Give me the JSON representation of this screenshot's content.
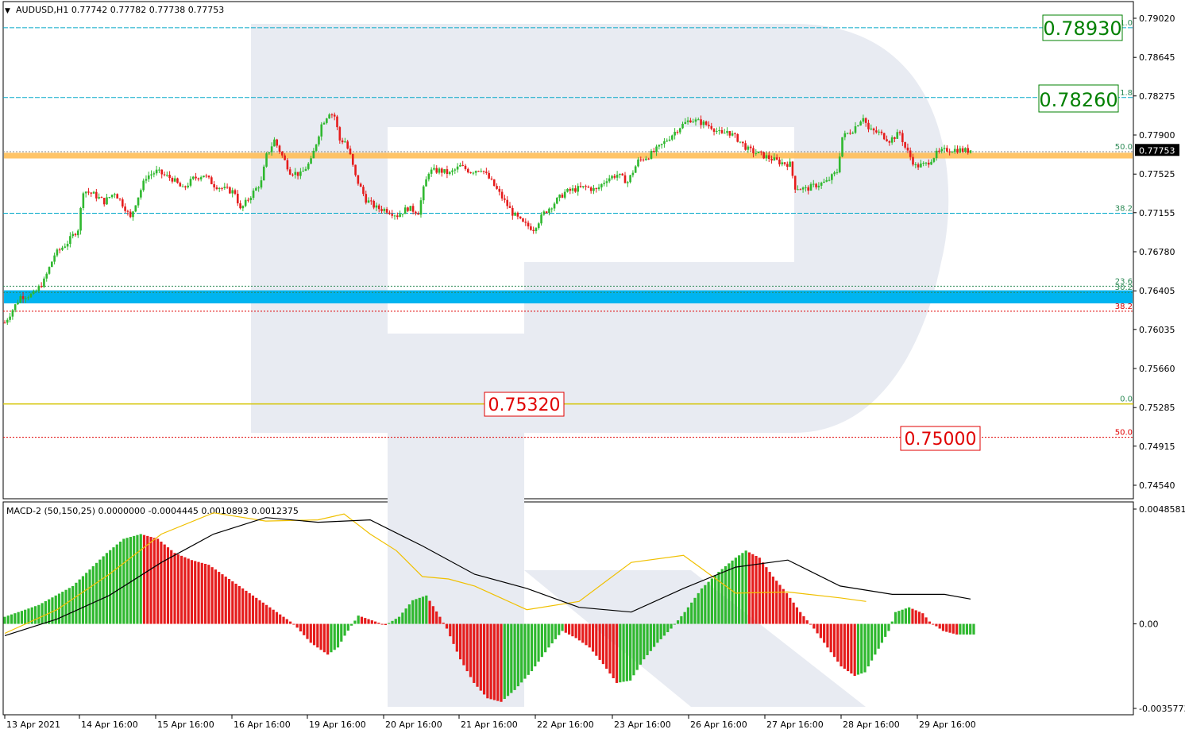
{
  "header": {
    "symbol_line": "AUDUSD,H1  0.77742 0.77782 0.77738 0.77753"
  },
  "colors": {
    "bull": "#2fb82f",
    "bear": "#e51c1c",
    "cyan_line": "#00a8c8",
    "zone_orange": "#ffbe57",
    "zone_blue": "#00b4f0",
    "green_box": "#008000",
    "red_box": "#e00000",
    "watermark": "#e8ebf2",
    "macd_signal": "#f0c000",
    "macd_line": "#000000"
  },
  "chart_data": [
    {
      "type": "candlestick",
      "symbol": "AUDUSD",
      "timeframe": "H1",
      "ohlc_last": {
        "open": 0.77742,
        "high": 0.77782,
        "low": 0.77738,
        "close": 0.77753
      },
      "current_price_label": "0.77753",
      "y_ticks": [
        "0.79020",
        "0.78645",
        "0.78275",
        "0.77900",
        "0.77525",
        "0.77155",
        "0.76780",
        "0.76405",
        "0.76035",
        "0.75660",
        "0.75285",
        "0.74915",
        "0.74540"
      ],
      "y_tick_values": [
        0.7902,
        0.78645,
        0.78275,
        0.779,
        0.77525,
        0.77155,
        0.7678,
        0.76405,
        0.76035,
        0.7566,
        0.75285,
        0.74915,
        0.7454
      ],
      "ylim": [
        0.7436,
        0.7918
      ],
      "x_ticks": [
        "13 Apr 2021",
        "14 Apr 16:00",
        "15 Apr 16:00",
        "16 Apr 16:00",
        "19 Apr 16:00",
        "20 Apr 16:00",
        "21 Apr 16:00",
        "22 Apr 16:00",
        "23 Apr 16:00",
        "26 Apr 16:00",
        "27 Apr 16:00",
        "28 Apr 16:00",
        "29 Apr 16:00"
      ],
      "trend": [
        [
          0,
          0.761
        ],
        [
          6,
          0.7635
        ],
        [
          11,
          0.7637
        ],
        [
          15,
          0.765
        ],
        [
          19,
          0.7675
        ],
        [
          24,
          0.7687
        ],
        [
          28,
          0.77
        ],
        [
          30,
          0.7737
        ],
        [
          34,
          0.7733
        ],
        [
          38,
          0.7726
        ],
        [
          42,
          0.7735
        ],
        [
          46,
          0.772
        ],
        [
          48,
          0.771
        ],
        [
          50,
          0.7725
        ],
        [
          54,
          0.775
        ],
        [
          58,
          0.7755
        ],
        [
          64,
          0.7748
        ],
        [
          68,
          0.7738
        ],
        [
          72,
          0.7748
        ],
        [
          76,
          0.7752
        ],
        [
          80,
          0.7742
        ],
        [
          84,
          0.7738
        ],
        [
          88,
          0.7735
        ],
        [
          90,
          0.7718
        ],
        [
          94,
          0.7732
        ],
        [
          98,
          0.7745
        ],
        [
          100,
          0.777
        ],
        [
          103,
          0.7785
        ],
        [
          106,
          0.777
        ],
        [
          109,
          0.7755
        ],
        [
          113,
          0.7752
        ],
        [
          117,
          0.7765
        ],
        [
          121,
          0.78
        ],
        [
          124,
          0.7812
        ],
        [
          126,
          0.7808
        ],
        [
          128,
          0.7785
        ],
        [
          130,
          0.7784
        ],
        [
          132,
          0.777
        ],
        [
          134,
          0.775
        ],
        [
          138,
          0.7728
        ],
        [
          142,
          0.772
        ],
        [
          146,
          0.7718
        ],
        [
          150,
          0.7713
        ],
        [
          154,
          0.772
        ],
        [
          158,
          0.7716
        ],
        [
          160,
          0.7738
        ],
        [
          162,
          0.7755
        ],
        [
          166,
          0.7756
        ],
        [
          170,
          0.7753
        ],
        [
          174,
          0.776
        ],
        [
          178,
          0.7755
        ],
        [
          182,
          0.7758
        ],
        [
          186,
          0.7745
        ],
        [
          190,
          0.773
        ],
        [
          194,
          0.7715
        ],
        [
          198,
          0.7705
        ],
        [
          202,
          0.77
        ],
        [
          206,
          0.7715
        ],
        [
          210,
          0.7725
        ],
        [
          214,
          0.7735
        ],
        [
          218,
          0.7738
        ],
        [
          222,
          0.774
        ],
        [
          226,
          0.7737
        ],
        [
          230,
          0.7748
        ],
        [
          234,
          0.7752
        ],
        [
          238,
          0.7745
        ],
        [
          242,
          0.7765
        ],
        [
          246,
          0.777
        ],
        [
          250,
          0.7778
        ],
        [
          254,
          0.7788
        ],
        [
          258,
          0.7798
        ],
        [
          262,
          0.7805
        ],
        [
          266,
          0.7802
        ],
        [
          270,
          0.7798
        ],
        [
          274,
          0.779
        ],
        [
          276,
          0.7794
        ],
        [
          280,
          0.7786
        ],
        [
          284,
          0.7776
        ],
        [
          288,
          0.7772
        ],
        [
          292,
          0.7768
        ],
        [
          296,
          0.7764
        ],
        [
          300,
          0.7762
        ],
        [
          302,
          0.774
        ],
        [
          306,
          0.7738
        ],
        [
          310,
          0.7742
        ],
        [
          314,
          0.7745
        ],
        [
          318,
          0.7755
        ],
        [
          320,
          0.7788
        ],
        [
          324,
          0.7795
        ],
        [
          328,
          0.7808
        ],
        [
          330,
          0.7795
        ],
        [
          334,
          0.7792
        ],
        [
          338,
          0.7785
        ],
        [
          342,
          0.7792
        ],
        [
          344,
          0.7778
        ],
        [
          348,
          0.776
        ],
        [
          352,
          0.7762
        ],
        [
          356,
          0.7772
        ],
        [
          360,
          0.7776
        ],
        [
          364,
          0.7776
        ],
        [
          367,
          0.7775
        ]
      ],
      "watermark": "R",
      "fibonacci_levels": [
        {
          "label": "1.0",
          "price": 0.7893,
          "line": "cyan"
        },
        {
          "label": "1.8",
          "price": 0.7826,
          "line": "cyan"
        },
        {
          "label": "50.0",
          "price": 0.7774,
          "line": "dotted-gray"
        },
        {
          "label": "38.2",
          "price": 0.7715,
          "line": "cyan"
        },
        {
          "label": "23.6",
          "price": 0.7645,
          "line": "dotted-green"
        },
        {
          "label": "30.2",
          "price": 0.7639,
          "line": "dotted-green"
        },
        {
          "label": "38.2",
          "price": 0.7621,
          "line": "dotted-red"
        },
        {
          "label": "0.0",
          "price": 0.7532,
          "line": "yellow-solid"
        },
        {
          "label": "50.0",
          "price": 0.75,
          "line": "dotted-red"
        }
      ],
      "zones": [
        {
          "color": "orange",
          "from": 0.77675,
          "to": 0.7773
        },
        {
          "color": "blue",
          "from": 0.76285,
          "to": 0.7641
        }
      ],
      "targets_up": [
        "0.78930",
        "0.78260"
      ],
      "targets_down": [
        "0.75320",
        "0.75000"
      ]
    },
    {
      "type": "histogram",
      "indicator": "MACD-2 (50,150,25)",
      "legend_line": "MACD-2 (50,150,25) 0.0000000 -0.0004445 0.0010893 0.0012375",
      "y_ticks": [
        "0.0048581",
        "0.00",
        "-0.0035773"
      ],
      "y_tick_values": [
        0.0048581,
        0,
        -0.0035773
      ],
      "ylim": [
        -0.0035773,
        0.0048581
      ],
      "histogram_trend": [
        [
          0,
          0.0003
        ],
        [
          10,
          0.0008
        ],
        [
          20,
          0.0016
        ],
        [
          30,
          0.003
        ],
        [
          35,
          0.0036
        ],
        [
          40,
          0.0038
        ],
        [
          45,
          0.0036
        ],
        [
          50,
          0.003
        ],
        [
          55,
          0.0027
        ],
        [
          60,
          0.0025
        ],
        [
          65,
          0.002
        ],
        [
          70,
          0.0015
        ],
        [
          75,
          0.001
        ],
        [
          80,
          0.0005
        ],
        [
          85,
          0.0
        ],
        [
          90,
          -0.0008
        ],
        [
          95,
          -0.0013
        ],
        [
          98,
          -0.001
        ],
        [
          100,
          -0.0005
        ],
        [
          104,
          0.00035
        ],
        [
          108,
          0.00015
        ],
        [
          112,
          -5e-05
        ],
        [
          116,
          0.0003
        ],
        [
          120,
          0.001
        ],
        [
          124,
          0.0012
        ],
        [
          128,
          0.0003
        ],
        [
          130,
          -0.0002
        ],
        [
          134,
          -0.0015
        ],
        [
          138,
          -0.0025
        ],
        [
          142,
          -0.00315
        ],
        [
          146,
          -0.0033
        ],
        [
          150,
          -0.0028
        ],
        [
          155,
          -0.002
        ],
        [
          160,
          -0.001
        ],
        [
          164,
          -0.0003
        ],
        [
          168,
          -0.0006
        ],
        [
          172,
          -0.001
        ],
        [
          176,
          -0.0017
        ],
        [
          180,
          -0.0025
        ],
        [
          184,
          -0.0024
        ],
        [
          188,
          -0.0015
        ],
        [
          192,
          -0.0008
        ],
        [
          196,
          -0.0002
        ],
        [
          200,
          0.0005
        ],
        [
          205,
          0.0015
        ],
        [
          210,
          0.0022
        ],
        [
          215,
          0.0028
        ],
        [
          218,
          0.0031
        ],
        [
          222,
          0.0028
        ],
        [
          226,
          0.002
        ],
        [
          230,
          0.0013
        ],
        [
          234,
          0.0005
        ],
        [
          238,
          -0.0002
        ],
        [
          242,
          -0.001
        ],
        [
          246,
          -0.0018
        ],
        [
          250,
          -0.0022
        ],
        [
          253,
          -0.00205
        ],
        [
          256,
          -0.0013
        ],
        [
          260,
          -0.0003
        ],
        [
          262,
          0.0005
        ],
        [
          266,
          0.0007
        ],
        [
          270,
          0.00045
        ],
        [
          272,
          0.0001
        ],
        [
          276,
          -0.0003
        ],
        [
          280,
          -0.00045
        ],
        [
          285,
          -0.00045
        ]
      ],
      "signal_trend": [
        [
          0,
          -0.0004
        ],
        [
          20,
          0.0006
        ],
        [
          40,
          0.0021
        ],
        [
          60,
          0.0038
        ],
        [
          80,
          0.0047
        ],
        [
          100,
          0.00435
        ],
        [
          120,
          0.0044
        ],
        [
          130,
          0.00465
        ],
        [
          140,
          0.0038
        ],
        [
          150,
          0.0031
        ],
        [
          160,
          0.002
        ],
        [
          170,
          0.0019
        ],
        [
          180,
          0.0016
        ],
        [
          200,
          0.0006
        ],
        [
          220,
          0.00095
        ],
        [
          240,
          0.0026
        ],
        [
          260,
          0.0029
        ],
        [
          280,
          0.0013
        ],
        [
          300,
          0.00135
        ],
        [
          320,
          0.0011
        ],
        [
          330,
          0.00095
        ]
      ],
      "macd_trend": [
        [
          0,
          -0.0005
        ],
        [
          20,
          0.0002
        ],
        [
          40,
          0.0012
        ],
        [
          60,
          0.0026
        ],
        [
          80,
          0.0038
        ],
        [
          100,
          0.0045
        ],
        [
          120,
          0.0043
        ],
        [
          140,
          0.0044
        ],
        [
          160,
          0.0033
        ],
        [
          180,
          0.0021
        ],
        [
          200,
          0.0015
        ],
        [
          220,
          0.0007
        ],
        [
          240,
          0.0005
        ],
        [
          260,
          0.0015
        ],
        [
          280,
          0.0024
        ],
        [
          300,
          0.0027
        ],
        [
          320,
          0.0016
        ],
        [
          340,
          0.00125
        ],
        [
          360,
          0.00125
        ],
        [
          370,
          0.00105
        ]
      ]
    }
  ]
}
